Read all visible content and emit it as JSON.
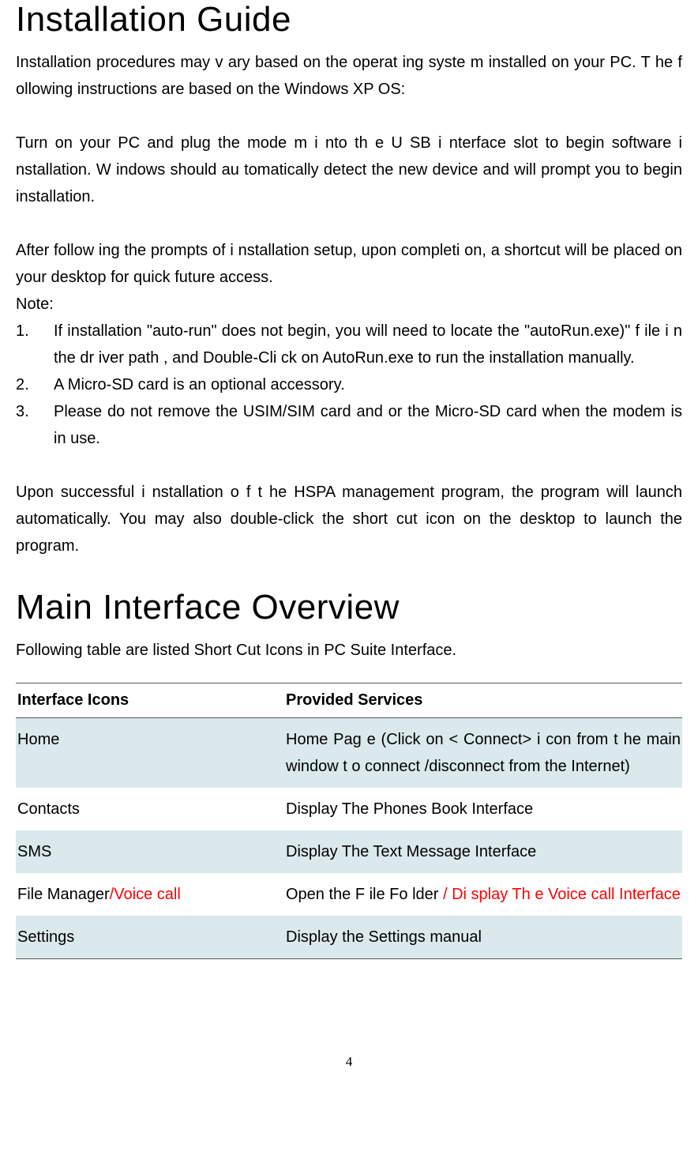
{
  "headings": {
    "installation": "Installation Guide",
    "main_interface": "Main Interface Overview"
  },
  "paragraphs": {
    "install_intro": "Installation procedures may  v ary based on the operat  ing syste m installed on your PC. T  he f ollowing instructions are based on the Windows XP OS:",
    "install_step": "Turn on your PC and plug the mode  m i nto th e U SB i nterface slot to begin software i nstallation. W indows should au tomatically detect the new device and will prompt you to begin installation.",
    "install_after": "After follow ing the prompts of i  nstallation setup, upon completi on, a shortcut will be placed on your desktop for quick future access.",
    "note_label": "Note:",
    "upon_success": "Upon successful i nstallation o f t he HSPA management program,  the program will launch automatically. You may also double-click the short cut icon on the desktop to launch the program.",
    "main_intro": "Following table are listed Short Cut Icons in PC Suite Interface."
  },
  "notes": [
    "If installation \"auto-run\" does not begin, you will need to locate the \"autoRun.exe)\" f ile i n the  dr iver path , and Double-Cli  ck on AutoRun.exe to run the installation manually.",
    "A Micro-SD card is an optional accessory.",
    "Please do not remove the USIM/SIM card and or the Micro-SD card when the modem is in use."
  ],
  "table": {
    "headers": {
      "col1": "Interface Icons",
      "col2": "Provided Services"
    },
    "rows": [
      {
        "icon": "Home",
        "service": "Home Pag e (Click on < Connect> i con from t he main window t o connect /disconnect from the Internet)"
      },
      {
        "icon": "Contacts",
        "service": "Display The Phones Book Interface"
      },
      {
        "icon": "SMS",
        "service": "Display The Text Message Interface"
      },
      {
        "icon_black": "File Manager",
        "icon_red": "/Voice call",
        "service_black": "Open the F ile Fo lder ",
        "service_red": "/ Di splay Th e Voice call Interface"
      },
      {
        "icon": "Settings",
        "service": "Display the Settings manual"
      }
    ]
  },
  "page_number": "4",
  "colors": {
    "row_even_bg": "#dbe9ec",
    "row_odd_bg": "#ffffff",
    "red_text": "#ff0000",
    "border": "#555555",
    "text": "#000000",
    "background": "#ffffff"
  }
}
